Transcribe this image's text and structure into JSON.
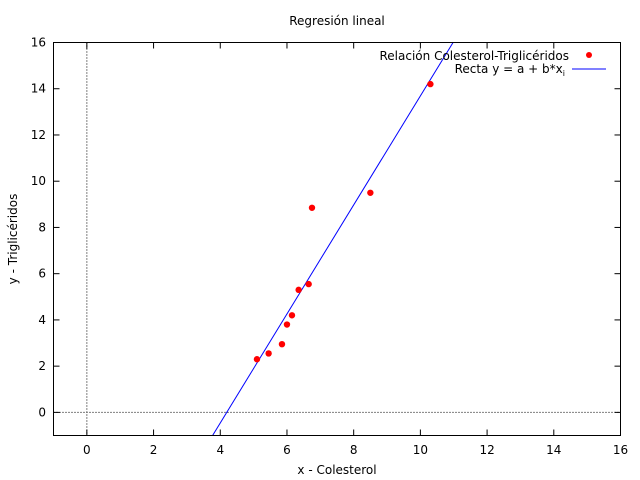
{
  "chart_data": {
    "type": "scatter",
    "title": "Regresión lineal",
    "xlabel": "x - Colesterol",
    "ylabel": "y - Triglicéridos",
    "xlim": [
      -1,
      16
    ],
    "ylim": [
      -1,
      16
    ],
    "x_ticks": [
      0,
      2,
      4,
      6,
      8,
      10,
      12,
      14,
      16
    ],
    "y_ticks": [
      0,
      2,
      4,
      6,
      8,
      10,
      12,
      14,
      16
    ],
    "x_tick_labels": [
      "0",
      "2",
      "4",
      "6",
      "8",
      "10",
      "12",
      "14",
      "16"
    ],
    "y_tick_labels": [
      "0",
      "2",
      "4",
      "6",
      "8",
      "10",
      "12",
      "14",
      "16"
    ],
    "zero_axes": "dotted",
    "grid": false,
    "legend_position": "top-right",
    "series": [
      {
        "name": "Relación Colesterol-Triglicéridos",
        "kind": "points",
        "color": "#ff0000",
        "points": [
          {
            "x": 5.1,
            "y": 2.3
          },
          {
            "x": 5.45,
            "y": 2.55
          },
          {
            "x": 5.85,
            "y": 2.95
          },
          {
            "x": 6.0,
            "y": 3.8
          },
          {
            "x": 6.15,
            "y": 4.2
          },
          {
            "x": 6.35,
            "y": 5.3
          },
          {
            "x": 6.65,
            "y": 5.55
          },
          {
            "x": 6.75,
            "y": 8.85
          },
          {
            "x": 8.5,
            "y": 9.5
          },
          {
            "x": 10.3,
            "y": 14.2
          }
        ]
      },
      {
        "name_prefix": "Recta y = a + b*x",
        "name_subscript": "i",
        "kind": "line",
        "color": "#0000ff",
        "line": {
          "start": {
            "x": 3.77,
            "y": -1
          },
          "end": {
            "x": 10.98,
            "y": 16
          }
        }
      }
    ]
  }
}
